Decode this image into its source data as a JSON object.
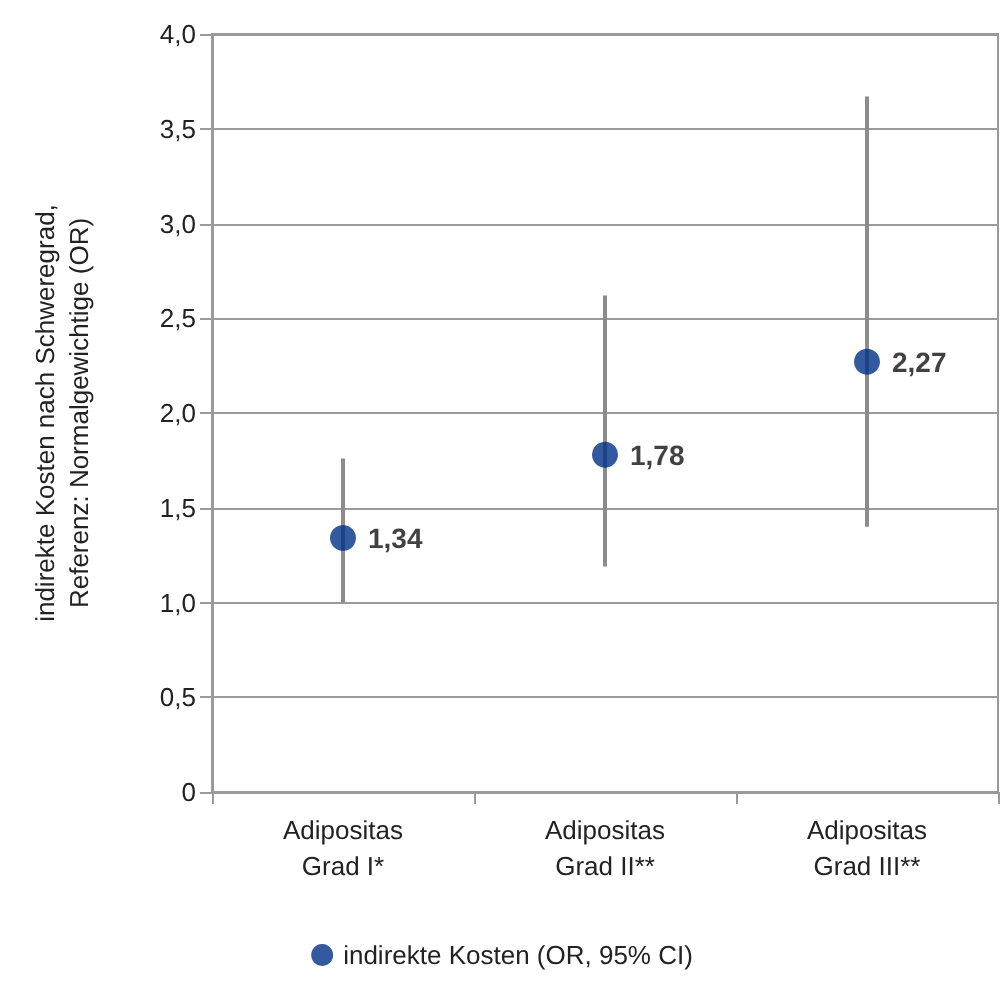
{
  "chart_data": {
    "type": "scatter",
    "ylabel": "indirekte Kosten nach Schweregrad,\nReferenz: Normalgewichtige (OR)",
    "categories": [
      "Adipositas\nGrad I*",
      "Adipositas\nGrad II**",
      "Adipositas\nGrad III**"
    ],
    "series": [
      {
        "name": "indirekte Kosten (OR, 95% CI)",
        "color": "#003087",
        "values": [
          1.34,
          1.78,
          2.27
        ],
        "errors": [
          [
            1.0,
            1.76
          ],
          [
            1.19,
            2.62
          ],
          [
            1.4,
            3.67
          ]
        ],
        "value_labels": [
          "1,34",
          "1,78",
          "2,27"
        ]
      }
    ],
    "ylim": [
      0,
      4
    ],
    "yticks": [
      0,
      {
        "value": 0.5,
        "label": "0,5"
      },
      {
        "value": 1,
        "label": "1,0"
      },
      {
        "value": 1.5,
        "label": "1,5"
      },
      {
        "value": 2,
        "label": "2,0"
      },
      {
        "value": 2.5,
        "label": "2,5"
      },
      {
        "value": 3,
        "label": "3,0"
      },
      {
        "value": 3.5,
        "label": "3,5"
      },
      {
        "value": 4,
        "label": "4,0"
      }
    ],
    "grid": "y",
    "legend": "bottom",
    "marker": "circle"
  }
}
